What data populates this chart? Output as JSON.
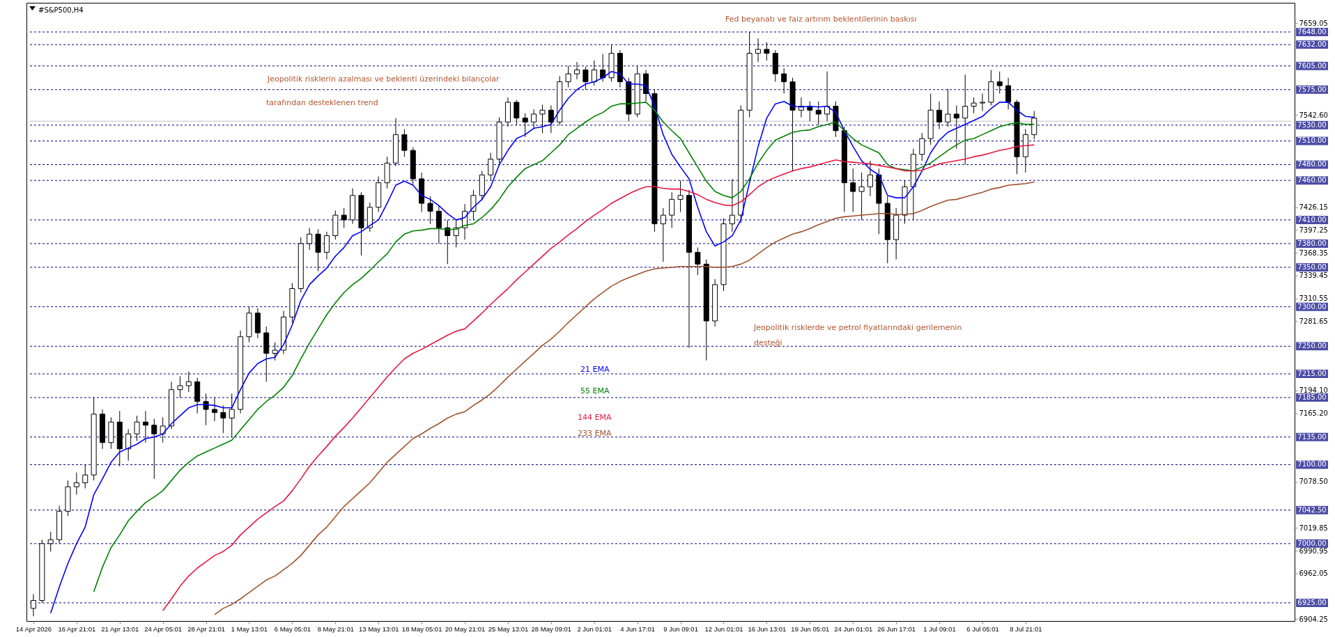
{
  "chart_data": {
    "type": "candlestick",
    "title": "#S&P500,H4",
    "annotations": [
      "Fed beyanatı ve faiz artırım beklentilerinin baskısı",
      "Jeopolitik risklerin azalması ve beklenti üzerindeki bilançolar",
      "tarafından desteklenen trend",
      "Jeopolitik risklerde ve petrol fiyatlarındaki gerilemenin",
      "desteği"
    ],
    "categories": [
      "14 Apr 2026",
      null,
      null,
      null,
      null,
      "16 Apr 21:01",
      null,
      null,
      null,
      null,
      "21 Apr 13:01",
      null,
      null,
      null,
      null,
      "24 Apr 05:01",
      null,
      null,
      null,
      null,
      "28 Apr 21:01",
      null,
      null,
      null,
      null,
      "1 May 13:01",
      null,
      null,
      null,
      null,
      "6 May 05:01",
      null,
      null,
      null,
      null,
      "8 May 21:01",
      null,
      null,
      null,
      null,
      "13 May 13:01",
      null,
      null,
      null,
      null,
      "18 May 05:01",
      null,
      null,
      null,
      null,
      "20 May 21:01",
      null,
      null,
      null,
      null,
      "25 May 13:01",
      null,
      null,
      null,
      null,
      "28 May 09:01",
      null,
      null,
      null,
      null,
      "2 Jun 01:01",
      null,
      null,
      null,
      null,
      "4 Jun 17:01",
      null,
      null,
      null,
      null,
      "9 Jun 09:01",
      null,
      null,
      null,
      null,
      "12 Jun 01:01",
      null,
      null,
      null,
      null,
      "16 Jun 13:01",
      null,
      null,
      null,
      null,
      "19 Jun 05:01",
      null,
      null,
      null,
      null,
      "24 Jun 01:01",
      null,
      null,
      null,
      null,
      "26 Jun 17:01",
      null,
      null,
      null,
      null,
      "1 Jul 09:01",
      null,
      null,
      null,
      null,
      "6 Jul 05:01",
      null,
      null,
      null,
      null,
      "8 Jul 21:01",
      null
    ],
    "ohlc": [
      [
        6918,
        6936,
        6908,
        6928
      ],
      [
        6928,
        7005,
        6925,
        7000
      ],
      [
        7000,
        7015,
        6990,
        7005
      ],
      [
        7005,
        7048,
        7000,
        7041
      ],
      [
        7041,
        7080,
        7035,
        7072
      ],
      [
        7072,
        7090,
        7062,
        7077
      ],
      [
        7077,
        7100,
        7070,
        7087
      ],
      [
        7087,
        7185,
        7080,
        7164
      ],
      [
        7164,
        7170,
        7120,
        7128
      ],
      [
        7128,
        7160,
        7120,
        7154
      ],
      [
        7154,
        7168,
        7098,
        7120
      ],
      [
        7120,
        7145,
        7105,
        7139
      ],
      [
        7139,
        7162,
        7130,
        7154
      ],
      [
        7154,
        7168,
        7128,
        7150
      ],
      [
        7150,
        7158,
        7082,
        7139
      ],
      [
        7139,
        7160,
        7128,
        7149
      ],
      [
        7149,
        7205,
        7145,
        7195
      ],
      [
        7195,
        7212,
        7185,
        7200
      ],
      [
        7200,
        7218,
        7192,
        7205
      ],
      [
        7205,
        7210,
        7165,
        7180
      ],
      [
        7180,
        7190,
        7150,
        7170
      ],
      [
        7170,
        7185,
        7155,
        7166
      ],
      [
        7166,
        7175,
        7140,
        7159
      ],
      [
        7159,
        7190,
        7135,
        7170
      ],
      [
        7170,
        7270,
        7165,
        7262
      ],
      [
        7262,
        7300,
        7255,
        7292
      ],
      [
        7292,
        7298,
        7260,
        7267
      ],
      [
        7267,
        7275,
        7205,
        7241
      ],
      [
        7241,
        7255,
        7232,
        7245
      ],
      [
        7245,
        7295,
        7240,
        7287
      ],
      [
        7287,
        7330,
        7280,
        7323
      ],
      [
        7323,
        7388,
        7318,
        7380
      ],
      [
        7380,
        7400,
        7372,
        7392
      ],
      [
        7392,
        7398,
        7345,
        7369
      ],
      [
        7369,
        7395,
        7360,
        7390
      ],
      [
        7390,
        7422,
        7385,
        7416
      ],
      [
        7416,
        7425,
        7400,
        7410
      ],
      [
        7410,
        7450,
        7405,
        7441
      ],
      [
        7441,
        7445,
        7365,
        7400
      ],
      [
        7400,
        7432,
        7395,
        7426
      ],
      [
        7426,
        7465,
        7420,
        7457
      ],
      [
        7457,
        7490,
        7450,
        7482
      ],
      [
        7482,
        7539,
        7478,
        7518
      ],
      [
        7518,
        7525,
        7490,
        7498
      ],
      [
        7498,
        7502,
        7455,
        7462
      ],
      [
        7462,
        7470,
        7420,
        7431
      ],
      [
        7431,
        7440,
        7405,
        7421
      ],
      [
        7421,
        7428,
        7380,
        7400
      ],
      [
        7400,
        7410,
        7354,
        7390
      ],
      [
        7390,
        7410,
        7375,
        7400
      ],
      [
        7400,
        7430,
        7385,
        7421
      ],
      [
        7421,
        7448,
        7410,
        7441
      ],
      [
        7441,
        7472,
        7435,
        7467
      ],
      [
        7467,
        7495,
        7460,
        7487
      ],
      [
        7487,
        7540,
        7482,
        7534
      ],
      [
        7534,
        7565,
        7528,
        7559
      ],
      [
        7559,
        7562,
        7530,
        7539
      ],
      [
        7539,
        7545,
        7515,
        7534
      ],
      [
        7534,
        7550,
        7525,
        7544
      ],
      [
        7544,
        7556,
        7520,
        7549
      ],
      [
        7549,
        7555,
        7520,
        7534
      ],
      [
        7534,
        7592,
        7530,
        7585
      ],
      [
        7585,
        7605,
        7578,
        7595
      ],
      [
        7595,
        7610,
        7588,
        7600
      ],
      [
        7600,
        7604,
        7575,
        7585
      ],
      [
        7585,
        7612,
        7580,
        7600
      ],
      [
        7600,
        7620,
        7585,
        7590
      ],
      [
        7590,
        7632,
        7585,
        7621
      ],
      [
        7621,
        7625,
        7578,
        7585
      ],
      [
        7585,
        7590,
        7535,
        7544
      ],
      [
        7544,
        7605,
        7540,
        7595
      ],
      [
        7595,
        7600,
        7560,
        7570
      ],
      [
        7570,
        7575,
        7395,
        7405
      ],
      [
        7405,
        7425,
        7357,
        7416
      ],
      [
        7416,
        7445,
        7400,
        7436
      ],
      [
        7436,
        7460,
        7420,
        7441
      ],
      [
        7441,
        7448,
        7248,
        7369
      ],
      [
        7369,
        7375,
        7340,
        7354
      ],
      [
        7354,
        7360,
        7232,
        7282
      ],
      [
        7282,
        7335,
        7275,
        7328
      ],
      [
        7328,
        7412,
        7320,
        7405
      ],
      [
        7405,
        7462,
        7395,
        7416
      ],
      [
        7416,
        7555,
        7406,
        7549
      ],
      [
        7549,
        7648,
        7540,
        7621
      ],
      [
        7621,
        7640,
        7610,
        7626
      ],
      [
        7626,
        7635,
        7612,
        7621
      ],
      [
        7621,
        7625,
        7585,
        7595
      ],
      [
        7595,
        7602,
        7570,
        7585
      ],
      [
        7585,
        7590,
        7472,
        7549
      ],
      [
        7549,
        7565,
        7540,
        7554
      ],
      [
        7554,
        7560,
        7535,
        7549
      ],
      [
        7549,
        7560,
        7530,
        7544
      ],
      [
        7544,
        7598,
        7535,
        7554
      ],
      [
        7554,
        7560,
        7515,
        7523
      ],
      [
        7523,
        7528,
        7420,
        7457
      ],
      [
        7457,
        7475,
        7420,
        7446
      ],
      [
        7446,
        7470,
        7410,
        7452
      ],
      [
        7452,
        7485,
        7440,
        7467
      ],
      [
        7467,
        7475,
        7392,
        7431
      ],
      [
        7431,
        7440,
        7355,
        7385
      ],
      [
        7385,
        7425,
        7360,
        7416
      ],
      [
        7416,
        7460,
        7405,
        7452
      ],
      [
        7452,
        7500,
        7410,
        7493
      ],
      [
        7493,
        7520,
        7485,
        7513
      ],
      [
        7513,
        7570,
        7505,
        7549
      ],
      [
        7549,
        7560,
        7525,
        7534
      ],
      [
        7534,
        7576,
        7528,
        7544
      ],
      [
        7544,
        7555,
        7500,
        7539
      ],
      [
        7539,
        7594,
        7480,
        7554
      ],
      [
        7554,
        7565,
        7545,
        7558
      ],
      [
        7558,
        7570,
        7548,
        7559
      ],
      [
        7559,
        7600,
        7555,
        7585
      ],
      [
        7585,
        7598,
        7570,
        7580
      ],
      [
        7580,
        7590,
        7550,
        7559
      ],
      [
        7559,
        7562,
        7468,
        7490
      ],
      [
        7490,
        7525,
        7470,
        7518
      ],
      [
        7518,
        7548,
        7512,
        7539
      ]
    ],
    "series": [
      {
        "name": "21 EMA",
        "type": "line",
        "color": "#0000ff",
        "values": [
          null,
          null,
          6912,
          6945,
          6975,
          7000,
          7021,
          7062,
          7082,
          7103,
          7116,
          7121,
          7126,
          7133,
          7135,
          7139,
          7152,
          7162,
          7172,
          7176,
          7176,
          7175,
          7172,
          7172,
          7195,
          7216,
          7228,
          7234,
          7236,
          7252,
          7277,
          7308,
          7328,
          7339,
          7349,
          7364,
          7375,
          7390,
          7395,
          7403,
          7410,
          7431,
          7454,
          7459,
          7454,
          7441,
          7436,
          7428,
          7418,
          7410,
          7413,
          7426,
          7436,
          7452,
          7480,
          7498,
          7513,
          7518,
          7526,
          7528,
          7531,
          7549,
          7564,
          7575,
          7582,
          7585,
          7590,
          7598,
          7595,
          7582,
          7582,
          7580,
          7554,
          7518,
          7493,
          7477,
          7462,
          7426,
          7395,
          7377,
          7382,
          7390,
          7410,
          7457,
          7503,
          7539,
          7557,
          7560,
          7554,
          7553,
          7554,
          7553,
          7554,
          7546,
          7523,
          7503,
          7485,
          7474,
          7467,
          7441,
          7438,
          7438,
          7452,
          7472,
          7495,
          7511,
          7521,
          7526,
          7531,
          7536,
          7541,
          7551,
          7559,
          7559,
          7549,
          7541,
          7540
        ]
      },
      {
        "name": "55 EMA",
        "type": "line",
        "color": "#008000",
        "values": [
          null,
          null,
          null,
          null,
          null,
          null,
          null,
          6939,
          6970,
          6995,
          7011,
          7029,
          7041,
          7052,
          7059,
          7067,
          7080,
          7093,
          7103,
          7111,
          7116,
          7121,
          7126,
          7131,
          7144,
          7157,
          7170,
          7180,
          7188,
          7198,
          7213,
          7234,
          7254,
          7272,
          7290,
          7305,
          7318,
          7328,
          7336,
          7346,
          7357,
          7367,
          7382,
          7392,
          7396,
          7397,
          7399,
          7399,
          7398,
          7398,
          7403,
          7405,
          7413,
          7423,
          7436,
          7452,
          7464,
          7475,
          7480,
          7485,
          7495,
          7505,
          7518,
          7526,
          7534,
          7541,
          7546,
          7554,
          7557,
          7557,
          7558,
          7559,
          7549,
          7534,
          7523,
          7513,
          7495,
          7477,
          7459,
          7446,
          7441,
          7438,
          7446,
          7462,
          7482,
          7498,
          7511,
          7516,
          7521,
          7523,
          7524,
          7528,
          7531,
          7534,
          7523,
          7513,
          7505,
          7500,
          7495,
          7480,
          7475,
          null,
          7472,
          7477,
          7482,
          7490,
          7498,
          7505,
          7511,
          7513,
          7518,
          7523,
          7528,
          7531,
          7533,
          7531,
          7531
        ]
      },
      {
        "name": "144 EMA",
        "type": "line",
        "color": "#e8173f",
        "values": [
          null,
          null,
          null,
          null,
          null,
          null,
          null,
          null,
          null,
          null,
          null,
          null,
          null,
          null,
          null,
          6915,
          6930,
          6946,
          6959,
          6969,
          6977,
          6985,
          6990,
          6998,
          7011,
          7021,
          7031,
          7039,
          7047,
          7054,
          7067,
          7082,
          7098,
          7111,
          7123,
          7136,
          7147,
          7159,
          7172,
          7185,
          7198,
          7211,
          7223,
          7234,
          7241,
          7246,
          7252,
          7258,
          7264,
          7269,
          7272,
          7282,
          7292,
          7303,
          7313,
          7323,
          7334,
          7344,
          7354,
          7364,
          7374,
          7382,
          7391,
          7399,
          7408,
          7416,
          7423,
          7431,
          7437,
          7443,
          7448,
          7452,
          7452,
          7450,
          7449,
          7449,
          7446,
          7442,
          7436,
          7432,
          7429,
          7428,
          7433,
          7442,
          7452,
          7459,
          7464,
          7468,
          7472,
          7475,
          7477,
          7480,
          7483,
          7486,
          7484,
          7483,
          7482,
          7481,
          7479,
          7477,
          7475,
          7472,
          7472,
          7473,
          7477,
          7481,
          7483,
          7485,
          7487,
          7490,
          7492,
          7495,
          7498,
          7500,
          7503,
          7504,
          7505
        ]
      },
      {
        "name": "233 EMA",
        "type": "line",
        "color": "#a0522d",
        "values": [
          null,
          null,
          null,
          null,
          null,
          null,
          null,
          null,
          null,
          null,
          null,
          null,
          null,
          null,
          null,
          null,
          null,
          null,
          null,
          null,
          null,
          6910,
          6918,
          6923,
          6930,
          6938,
          6946,
          6954,
          6959,
          6967,
          6975,
          6985,
          6998,
          7011,
          7021,
          7034,
          7047,
          7057,
          7067,
          7077,
          7090,
          7103,
          7113,
          7123,
          7133,
          7139,
          7146,
          7152,
          7159,
          7164,
          7167,
          7175,
          7182,
          7190,
          7200,
          7211,
          7221,
          7231,
          7241,
          7251,
          7259,
          7269,
          7280,
          7290,
          7300,
          7310,
          7318,
          7326,
          7332,
          7337,
          7341,
          7345,
          7348,
          7349,
          7350,
          7351,
          7351,
          7351,
          7351,
          7350,
          7350,
          7351,
          7354,
          7359,
          7367,
          7375,
          7382,
          7387,
          7392,
          7395,
          7399,
          7404,
          7408,
          7412,
          7414,
          7415,
          7416,
          7417,
          7418,
          7418,
          7417,
          7417,
          7418,
          7422,
          7427,
          7431,
          7435,
          7436,
          7439,
          7442,
          7445,
          7449,
          7451,
          7454,
          7455,
          7456,
          7458
        ]
      }
    ],
    "ylim": [
      6902,
      7685
    ],
    "yticks": [
      {
        "value": 7659.05,
        "label": "7659.05"
      },
      {
        "value": 7542.6,
        "label": "7542.60"
      },
      {
        "value": 7426.15,
        "label": "7426.15"
      },
      {
        "value": 7397.25,
        "label": "7397.25"
      },
      {
        "value": 7368.35,
        "label": "7368.35"
      },
      {
        "value": 7339.45,
        "label": "7339.45"
      },
      {
        "value": 7310.55,
        "label": "7310.55"
      },
      {
        "value": 7281.65,
        "label": "7281.65"
      },
      {
        "value": 7194.1,
        "label": "7194.10"
      },
      {
        "value": 7165.2,
        "label": "7165.20"
      },
      {
        "value": 7078.5,
        "label": "7078.50"
      },
      {
        "value": 7019.85,
        "label": "7019.85"
      },
      {
        "value": 6990.95,
        "label": "6990.95"
      },
      {
        "value": 6962.05,
        "label": "6962.05"
      },
      {
        "value": 6904.25,
        "label": "6904.25"
      }
    ],
    "ref_lines": [
      {
        "axis": "y",
        "value": 7648,
        "label": "7648.00",
        "color": "#000080",
        "line_style": "dashed"
      },
      {
        "axis": "y",
        "value": 7632,
        "label": "7632.00",
        "color": "#000080",
        "line_style": "dashed"
      },
      {
        "axis": "y",
        "value": 7605,
        "label": "7605.00",
        "color": "#000080",
        "line_style": "dashed"
      },
      {
        "axis": "y",
        "value": 7575,
        "label": "7575.00",
        "color": "#000080",
        "line_style": "dashed"
      },
      {
        "axis": "y",
        "value": 7530,
        "label": "7530.00",
        "color": "#000080",
        "line_style": "dashed"
      },
      {
        "axis": "y",
        "value": 7510,
        "label": "7510.00",
        "color": "#000080",
        "line_style": "dashed"
      },
      {
        "axis": "y",
        "value": 7480,
        "label": "7480.00",
        "color": "#000080",
        "line_style": "dashed"
      },
      {
        "axis": "y",
        "value": 7460,
        "label": "7460.00",
        "color": "#000080",
        "line_style": "dashed"
      },
      {
        "axis": "y",
        "value": 7410,
        "label": "7410.00",
        "color": "#000080",
        "line_style": "dashed"
      },
      {
        "axis": "y",
        "value": 7380,
        "label": "7380.00",
        "color": "#000080",
        "line_style": "dashed"
      },
      {
        "axis": "y",
        "value": 7350,
        "label": "7350.00",
        "color": "#000080",
        "line_style": "dashed"
      },
      {
        "axis": "y",
        "value": 7300,
        "label": "7300.00",
        "color": "#000080",
        "line_style": "dashed"
      },
      {
        "axis": "y",
        "value": 7250,
        "label": "7250.00",
        "color": "#000080",
        "line_style": "dashed"
      },
      {
        "axis": "y",
        "value": 7215,
        "label": "7215.00",
        "color": "#000080",
        "line_style": "dashed"
      },
      {
        "axis": "y",
        "value": 7185,
        "label": "7185.00",
        "color": "#000080",
        "line_style": "dashed"
      },
      {
        "axis": "y",
        "value": 7135,
        "label": "7135.00",
        "color": "#000080",
        "line_style": "dashed"
      },
      {
        "axis": "y",
        "value": 7100,
        "label": "7100.00",
        "color": "#000080",
        "line_style": "dashed"
      },
      {
        "axis": "y",
        "value": 7042.5,
        "label": "7042.50",
        "color": "#000080",
        "line_style": "dashed"
      },
      {
        "axis": "y",
        "value": 7000,
        "label": "7000.00",
        "color": "#000080",
        "line_style": "dashed"
      },
      {
        "axis": "y",
        "value": 6925,
        "label": "6925.00",
        "color": "#000080",
        "line_style": "dashed"
      },
      {
        "axis": "y",
        "value": 7535,
        "color": "#c0c0c0",
        "line_style": "solid"
      }
    ]
  }
}
